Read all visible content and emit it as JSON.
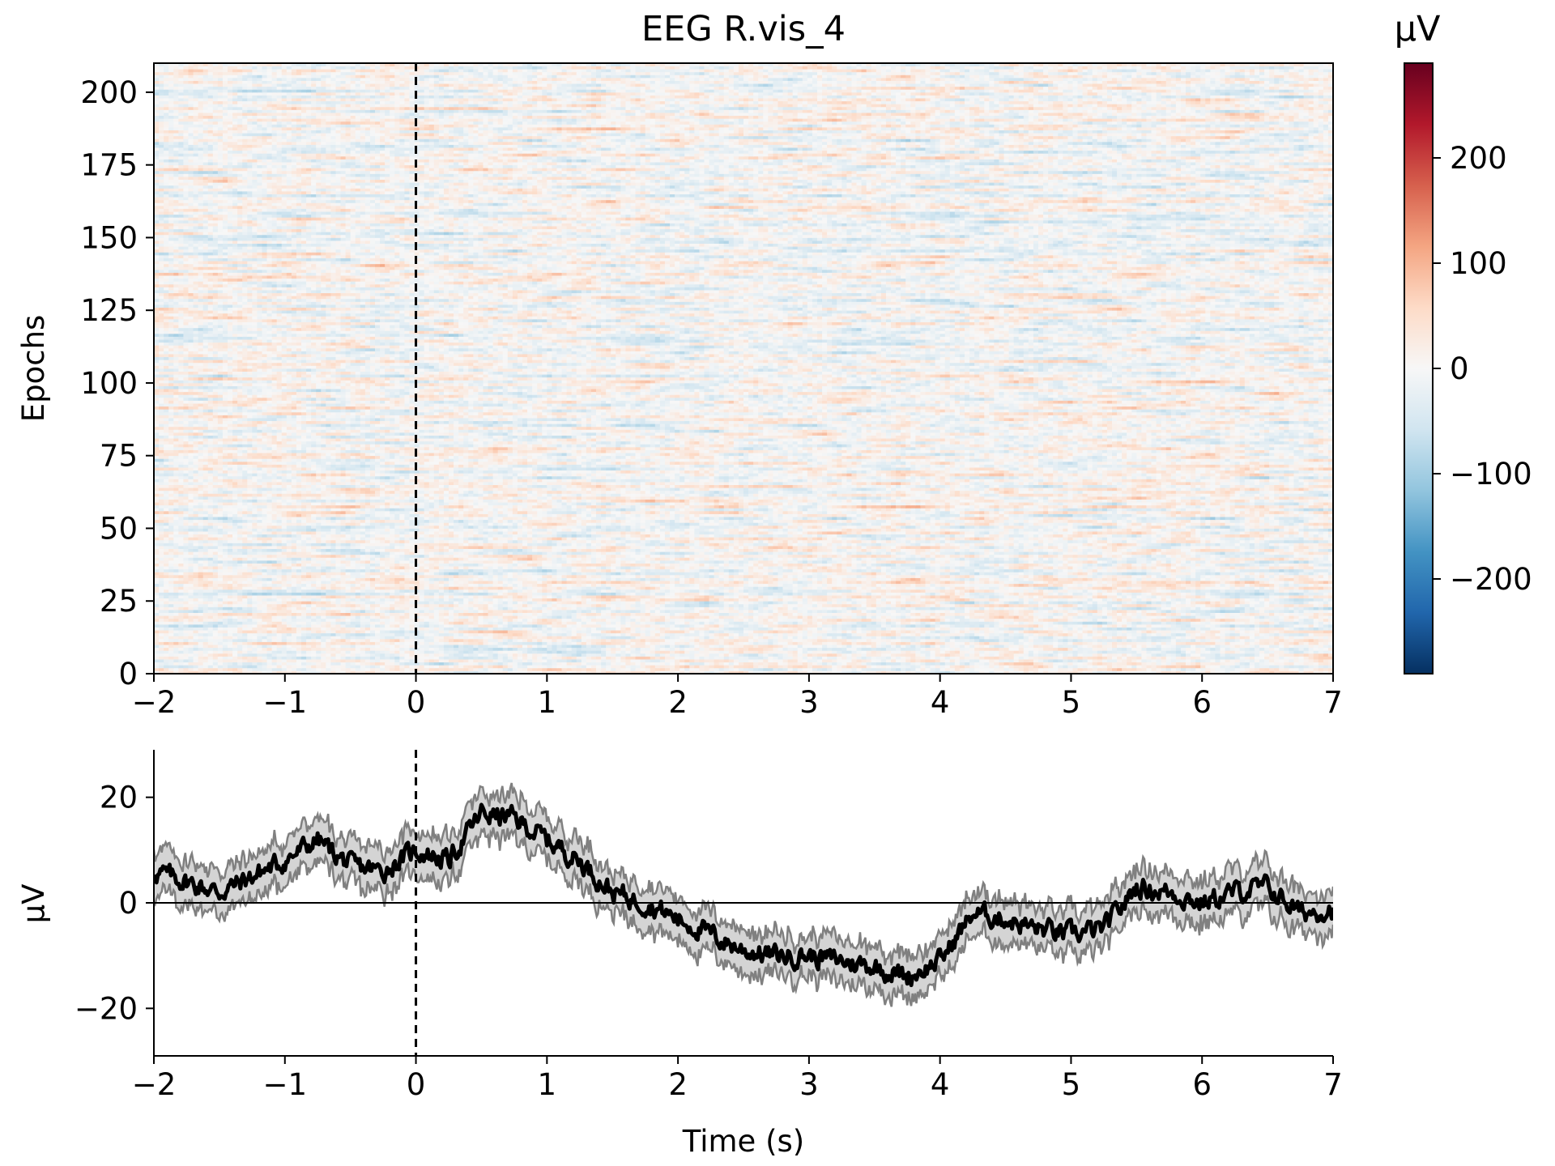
{
  "colors": {
    "cmap": [
      "#053061",
      "#2166ac",
      "#4393c3",
      "#92c5de",
      "#d1e5f0",
      "#f7f7f7",
      "#fddbc7",
      "#f4a582",
      "#d6604d",
      "#b2182b",
      "#67001f"
    ],
    "mean_line": "#000000",
    "band_line": "#808080",
    "band_fill": "#b0b0b0",
    "marker": "#000000"
  },
  "chart_data": [
    {
      "type": "heatmap",
      "title": "EEG R.vis_4",
      "xlabel": "",
      "ylabel": "Epochs",
      "xlim": [
        -2,
        7
      ],
      "ylim": [
        0,
        210
      ],
      "x_ticks": [
        "−2",
        "−1",
        "0",
        "1",
        "2",
        "3",
        "4",
        "5",
        "6",
        "7"
      ],
      "y_ticks": [
        "0",
        "25",
        "50",
        "75",
        "100",
        "125",
        "150",
        "175",
        "200"
      ],
      "colorbar": {
        "label": "µV",
        "range": [
          -290,
          290
        ],
        "ticks": [
          "200",
          "100",
          "0",
          "−100",
          "−200"
        ],
        "tick_values": [
          200,
          100,
          0,
          -100,
          -200
        ]
      },
      "event_marker_time": 0,
      "n_epochs": 210
    },
    {
      "type": "line",
      "title": "",
      "xlabel": "Time (s)",
      "ylabel": "µV",
      "xlim": [
        -2,
        7
      ],
      "ylim": [
        -29,
        29
      ],
      "x_ticks": [
        "−2",
        "−1",
        "0",
        "1",
        "2",
        "3",
        "4",
        "5",
        "6",
        "7"
      ],
      "y_ticks": [
        "20",
        "0",
        "−20"
      ],
      "y_tick_values": [
        20,
        0,
        -20
      ],
      "zero_line": 0,
      "event_marker_time": 0,
      "series": [
        {
          "x": [
            -2.0,
            -1.75,
            -1.5,
            -1.25,
            -1.0,
            -0.75,
            -0.5,
            -0.25,
            0.0,
            0.25,
            0.5,
            0.75,
            1.0,
            1.25,
            1.5,
            1.75,
            2.0,
            2.25,
            2.5,
            2.75,
            3.0,
            3.25,
            3.5,
            3.75,
            4.0,
            4.25,
            4.5,
            4.75,
            5.0,
            5.25,
            5.5,
            5.75,
            6.0,
            6.25,
            6.5,
            6.75,
            7.0
          ],
          "y": [
            6,
            4,
            2,
            5,
            8,
            12,
            7,
            6,
            10,
            8,
            17,
            16,
            12,
            8,
            2,
            0,
            -3,
            -6,
            -9,
            -10,
            -10,
            -11,
            -12,
            -14,
            -11,
            -2,
            -3,
            -5,
            -6,
            -5,
            3,
            2,
            0,
            2,
            3,
            -2,
            -1
          ],
          "band": 4
        }
      ]
    }
  ]
}
